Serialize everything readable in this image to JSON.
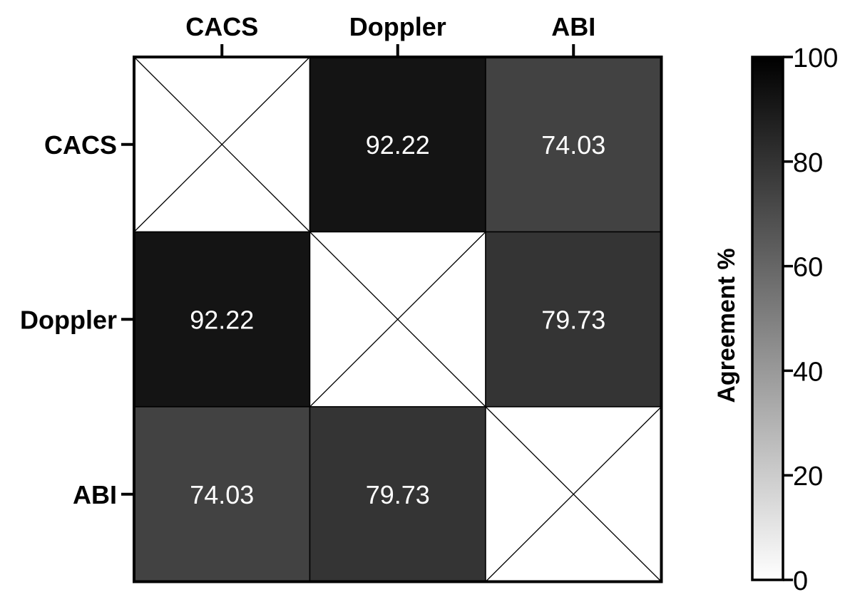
{
  "chart_data": {
    "type": "heatmap",
    "row_labels": [
      "CACS",
      "Doppler",
      "ABI"
    ],
    "col_labels": [
      "CACS",
      "Doppler",
      "ABI"
    ],
    "column_axis_position": "top",
    "values": [
      [
        null,
        92.22,
        74.03
      ],
      [
        92.22,
        null,
        79.73
      ],
      [
        74.03,
        79.73,
        null
      ]
    ],
    "cell_labels": [
      [
        "",
        "92.22",
        "74.03"
      ],
      [
        "92.22",
        "",
        "79.73"
      ],
      [
        "74.03",
        "79.73",
        ""
      ]
    ],
    "diagonal_marker": "cross",
    "colorbar": {
      "label": "Agreement %",
      "min": 0,
      "max": 100,
      "ticks": [
        0,
        20,
        40,
        60,
        80,
        100
      ],
      "tick_labels": [
        "0",
        "20",
        "40",
        "60",
        "80",
        "100"
      ],
      "color_low": "#ffffff",
      "color_high": "#000000"
    },
    "text_color_on_cells": "#ffffff",
    "border_color": "#000000"
  }
}
